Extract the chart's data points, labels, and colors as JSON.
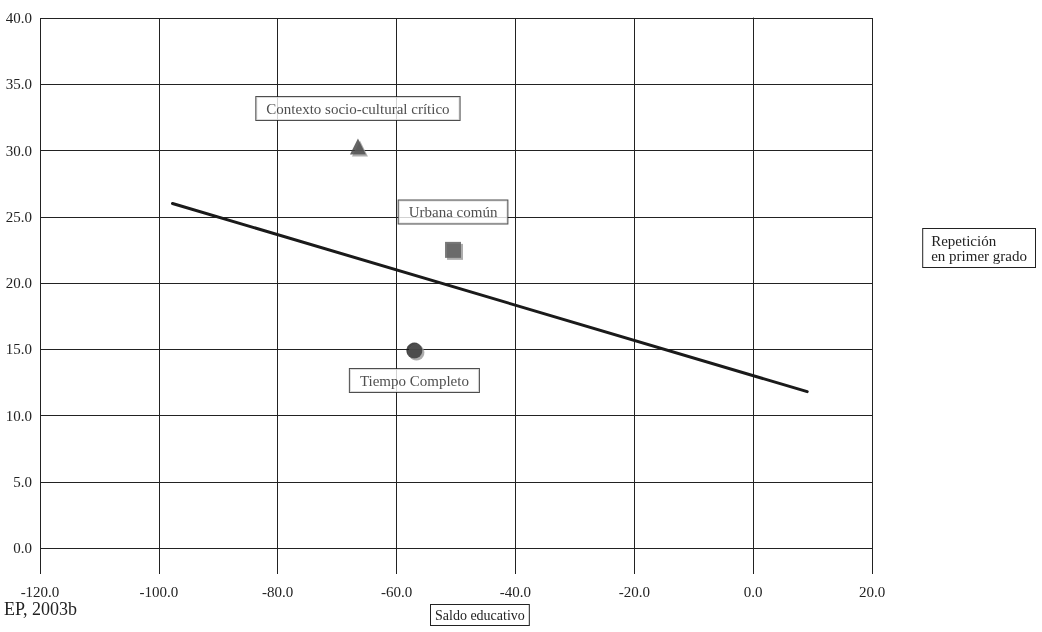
{
  "chart_data": {
    "type": "scatter",
    "xlabel": "Saldo educativo",
    "ylabel": "Repetición en primer grado",
    "annotations": [
      "EP, 2003b"
    ],
    "xlim": [
      -120,
      20
    ],
    "xticks": [
      {
        "value": -120,
        "label": "-120.0"
      },
      {
        "value": -100,
        "label": "-100.0"
      },
      {
        "value": -80,
        "label": "-80.0"
      },
      {
        "value": -60,
        "label": "-60.0"
      },
      {
        "value": -40,
        "label": "-40.0"
      },
      {
        "value": -20,
        "label": "-20.0"
      },
      {
        "value": 0,
        "label": "0.0"
      },
      {
        "value": 20,
        "label": "20.0"
      }
    ],
    "ylim": [
      0,
      40
    ],
    "yticks": [
      {
        "value": 0,
        "label": "0.0"
      },
      {
        "value": 5,
        "label": "5.0"
      },
      {
        "value": 10,
        "label": "10.0"
      },
      {
        "value": 15,
        "label": "15.0"
      },
      {
        "value": 20,
        "label": "20.0"
      },
      {
        "value": 25,
        "label": "25.0"
      },
      {
        "value": 30,
        "label": "30.0"
      },
      {
        "value": 35,
        "label": "35.0"
      },
      {
        "value": 40,
        "label": "40.0"
      }
    ],
    "grid": true,
    "legend": false,
    "series": [
      {
        "name": "Contexto socio-cultural crítico",
        "color": "#404040",
        "marker": "triangle",
        "x": [
          -66.5
        ],
        "values": [
          30.3
        ]
      },
      {
        "name": "Urbana común",
        "color": "#555555",
        "marker": "square",
        "x": [
          -50.5
        ],
        "values": [
          22.5
        ]
      },
      {
        "name": "Tiempo Completo",
        "color": "#1a1a1a",
        "marker": "circle",
        "x": [
          -57
        ],
        "values": [
          14.9
        ]
      },
      {
        "type": "line",
        "color": "#1a1a1a",
        "marker": "none",
        "x": [
          -97.7,
          9.1
        ],
        "values": [
          26.0,
          11.8
        ]
      }
    ]
  }
}
